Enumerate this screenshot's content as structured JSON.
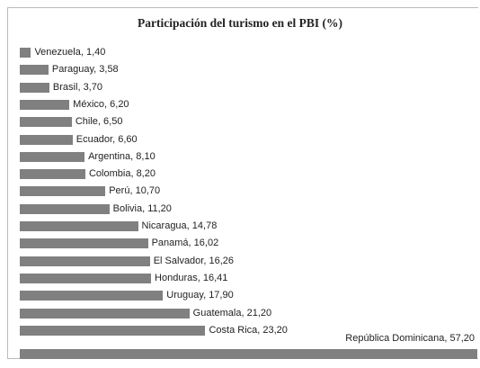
{
  "chart_data": {
    "type": "bar",
    "orientation": "horizontal",
    "title": "Participación del turismo en el PBI (%)",
    "categories": [
      "Venezuela",
      "Paraguay",
      "Brasil",
      "México",
      "Chile",
      "Ecuador",
      "Argentina",
      "Colombia",
      "Perú",
      "Bolivia",
      "Nicaragua",
      "Panamá",
      "El Salvador",
      "Honduras",
      "Uruguay",
      "Guatemala",
      "Costa Rica",
      "República Dominicana"
    ],
    "values": [
      1.4,
      3.58,
      3.7,
      6.2,
      6.5,
      6.6,
      8.1,
      8.2,
      10.7,
      11.2,
      14.78,
      16.02,
      16.26,
      16.41,
      17.9,
      21.2,
      23.2,
      57.2
    ],
    "value_labels": [
      "1,40",
      "3,58",
      "3,70",
      "6,20",
      "6,50",
      "6,60",
      "8,10",
      "8,20",
      "10,70",
      "11,20",
      "14,78",
      "16,02",
      "16,26",
      "16,41",
      "17,90",
      "21,20",
      "23,20",
      "57,20"
    ],
    "color": "#808080"
  }
}
